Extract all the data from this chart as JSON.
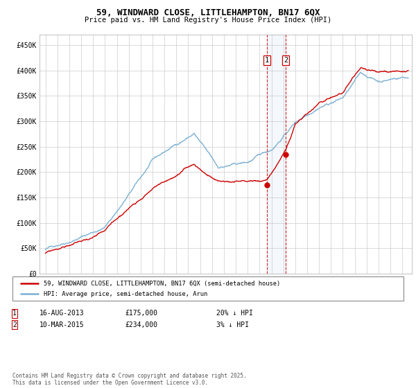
{
  "title": "59, WINDWARD CLOSE, LITTLEHAMPTON, BN17 6QX",
  "subtitle": "Price paid vs. HM Land Registry's House Price Index (HPI)",
  "legend_line1": "59, WINDWARD CLOSE, LITTLEHAMPTON, BN17 6QX (semi-detached house)",
  "legend_line2": "HPI: Average price, semi-detached house, Arun",
  "ann1_label": "1",
  "ann1_date": "16-AUG-2013",
  "ann1_price": "£175,000",
  "ann1_hpi": "20% ↓ HPI",
  "ann1_x": 2013.62,
  "ann1_y": 175000,
  "ann2_label": "2",
  "ann2_date": "10-MAR-2015",
  "ann2_price": "£234,000",
  "ann2_hpi": "3% ↓ HPI",
  "ann2_x": 2015.19,
  "ann2_y": 234000,
  "footer": "Contains HM Land Registry data © Crown copyright and database right 2025.\nThis data is licensed under the Open Government Licence v3.0.",
  "price_color": "#cc0000",
  "hpi_color": "#7ab0d4",
  "ylim": [
    0,
    470000
  ],
  "yticks": [
    0,
    50000,
    100000,
    150000,
    200000,
    250000,
    300000,
    350000,
    400000,
    450000
  ],
  "ytick_labels": [
    "£0",
    "£50K",
    "£100K",
    "£150K",
    "£200K",
    "£250K",
    "£300K",
    "£350K",
    "£400K",
    "£450K"
  ],
  "xlim": [
    1994.5,
    2025.8
  ],
  "xticks": [
    1995,
    1996,
    1997,
    1998,
    1999,
    2000,
    2001,
    2002,
    2003,
    2004,
    2005,
    2006,
    2007,
    2008,
    2009,
    2010,
    2011,
    2012,
    2013,
    2014,
    2015,
    2016,
    2017,
    2018,
    2019,
    2020,
    2021,
    2022,
    2023,
    2024,
    2025
  ]
}
